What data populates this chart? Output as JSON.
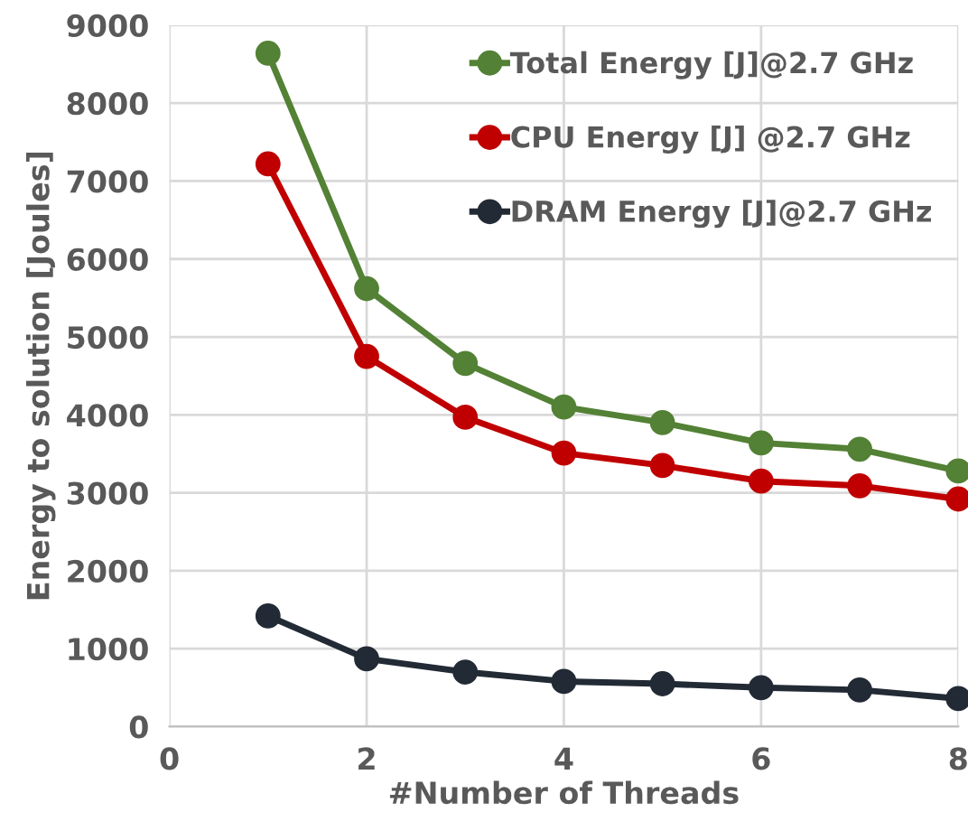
{
  "chart_data": {
    "type": "line",
    "xlabel": "#Number of Threads",
    "ylabel": "Energy to solution [Joules]",
    "x": [
      1,
      2,
      3,
      4,
      5,
      6,
      7,
      8
    ],
    "series": [
      {
        "name": "Total Energy [J]@2.7 GHz",
        "color": "#538135",
        "values": [
          8640,
          5620,
          4660,
          4100,
          3900,
          3640,
          3560,
          3280
        ]
      },
      {
        "name": "CPU Energy [J] @2.7 GHz",
        "color": "#c00000",
        "values": [
          7220,
          4750,
          3970,
          3510,
          3350,
          3150,
          3090,
          2920
        ]
      },
      {
        "name": "DRAM Energy [J]@2.7 GHz",
        "color": "#222a35",
        "values": [
          1420,
          870,
          700,
          580,
          550,
          500,
          470,
          360
        ]
      }
    ],
    "xlim": [
      0,
      8
    ],
    "xticks": [
      0,
      2,
      4,
      6,
      8
    ],
    "ylim": [
      0,
      9000
    ],
    "yticks": [
      0,
      1000,
      2000,
      3000,
      4000,
      5000,
      6000,
      7000,
      8000,
      9000
    ],
    "grid": true,
    "legend": "top right",
    "marker": "circle",
    "line_style": "solid"
  }
}
